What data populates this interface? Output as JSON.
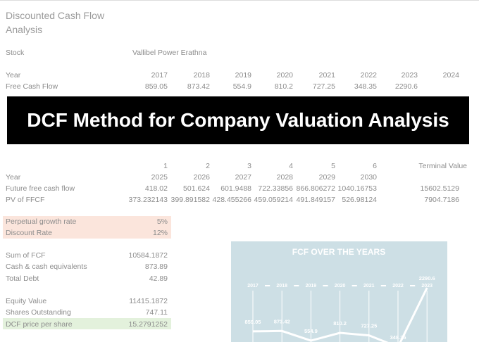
{
  "header": {
    "title": "Discounted Cash Flow Analysis"
  },
  "stock": {
    "label": "Stock",
    "value": "Vallibel Power Erathna"
  },
  "history": {
    "year_label": "Year",
    "years": [
      2017,
      2018,
      2019,
      2020,
      2021,
      2022,
      2023,
      2024
    ],
    "fcf_label": "Free Cash Flow",
    "fcf": [
      859.05,
      873.42,
      554.9,
      810.2,
      727.25,
      348.35,
      2290.6
    ]
  },
  "banner": "DCF Method for Company Valuation Analysis",
  "projection": {
    "periods": [
      1,
      2,
      3,
      4,
      5,
      6
    ],
    "terminal_label": "Terminal Value",
    "year_label": "Year",
    "years": [
      2025,
      2026,
      2027,
      2028,
      2029,
      2030
    ],
    "ffcf_label": "Future free cash flow",
    "ffcf": [
      418.02,
      501.624,
      601.9488,
      722.33856,
      866.806272,
      1040.16753
    ],
    "ffcf_terminal": 15602.5129,
    "pv_label": "PV of FFCF",
    "pv": [
      373.232143,
      399.891582,
      428.455266,
      459.059214,
      491.849157,
      526.98124
    ],
    "pv_terminal": 7904.7186
  },
  "assumptions": [
    {
      "label": "Perpetual growth rate",
      "value": "5%"
    },
    {
      "label": "Discount Rate",
      "value": "12%"
    }
  ],
  "totals": [
    {
      "label": "Sum of FCF",
      "value": 10584.1872
    },
    {
      "label": "Cash & cash equivalents",
      "value": 873.89
    },
    {
      "label": "Total Debt",
      "value": 42.89
    }
  ],
  "valuation": [
    {
      "label": "Equity Value",
      "value": 11415.1872
    },
    {
      "label": "Shares Outstanding",
      "value": 747.11
    },
    {
      "label": "DCF price per share",
      "value": 15.2791252
    }
  ],
  "chart_data": {
    "type": "line",
    "title": "FCF OVER THE YEARS",
    "categories": [
      "2017",
      "2018",
      "2019",
      "2020",
      "2021",
      "2022",
      "2023"
    ],
    "values": [
      859.05,
      873.42,
      554.9,
      810.2,
      727.25,
      348.35,
      2290.6
    ],
    "color": "#ffffff"
  }
}
